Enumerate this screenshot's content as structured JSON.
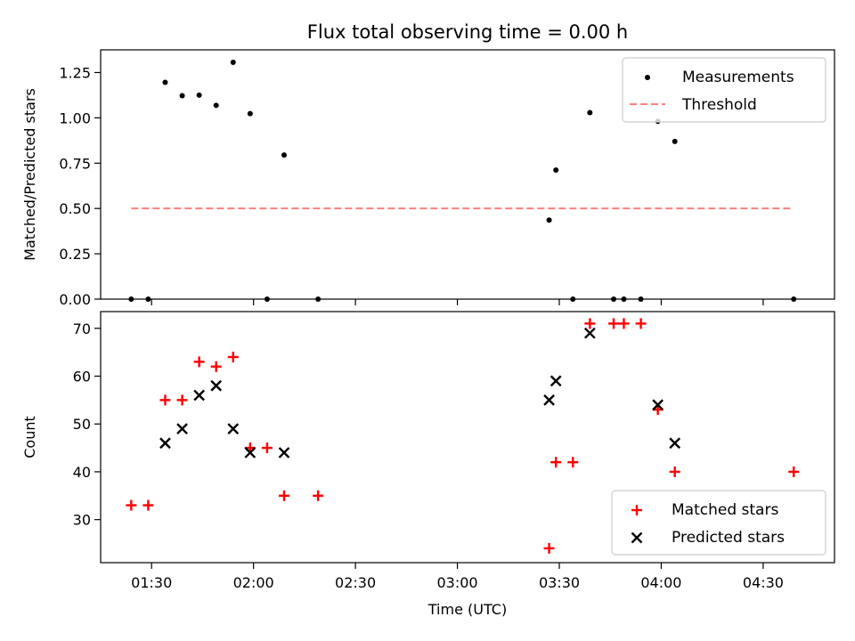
{
  "chart_data": [
    {
      "type": "scatter",
      "title": "Flux total observing time = 0.00 h",
      "xlabel": "",
      "ylabel": "Matched/Predicted stars",
      "xlim": [
        "01:15",
        "04:51"
      ],
      "ylim": [
        0,
        1.375
      ],
      "y_ticks": [
        "0.00",
        "0.25",
        "0.50",
        "0.75",
        "1.00",
        "1.25"
      ],
      "x_ticks": [
        "01:30",
        "02:00",
        "02:30",
        "03:00",
        "03:30",
        "04:00",
        "04:30"
      ],
      "x_ticklabels_visible": false,
      "grid": false,
      "legend": "top-right",
      "series": [
        {
          "name": "Measurements",
          "marker": "dot",
          "color": "#000000",
          "points": [
            {
              "x": "01:24",
              "y": 0.0
            },
            {
              "x": "01:29",
              "y": 0.0
            },
            {
              "x": "01:34",
              "y": 1.196
            },
            {
              "x": "01:39",
              "y": 1.122
            },
            {
              "x": "01:44",
              "y": 1.125
            },
            {
              "x": "01:49",
              "y": 1.069
            },
            {
              "x": "01:54",
              "y": 1.306
            },
            {
              "x": "01:59",
              "y": 1.023
            },
            {
              "x": "02:04",
              "y": 0.0
            },
            {
              "x": "02:09",
              "y": 0.795
            },
            {
              "x": "02:19",
              "y": 0.0
            },
            {
              "x": "03:27",
              "y": 0.436
            },
            {
              "x": "03:29",
              "y": 0.712
            },
            {
              "x": "03:34",
              "y": 0.0
            },
            {
              "x": "03:39",
              "y": 1.029
            },
            {
              "x": "03:46",
              "y": 0.0
            },
            {
              "x": "03:49",
              "y": 0.0
            },
            {
              "x": "03:54",
              "y": 0.0
            },
            {
              "x": "03:59",
              "y": 0.981
            },
            {
              "x": "04:04",
              "y": 0.87
            },
            {
              "x": "04:39",
              "y": 0.0
            }
          ]
        },
        {
          "name": "Threshold",
          "marker": "dashed-line",
          "color": "#ff7f7f",
          "points": [
            {
              "x": "01:24",
              "y": 0.5
            },
            {
              "x": "04:39",
              "y": 0.5
            }
          ]
        }
      ]
    },
    {
      "type": "scatter",
      "title": "",
      "xlabel": "Time (UTC)",
      "ylabel": "Count",
      "xlim": [
        "01:15",
        "04:51"
      ],
      "ylim": [
        21,
        73.5
      ],
      "y_ticks": [
        "30",
        "40",
        "50",
        "60",
        "70"
      ],
      "x_ticks": [
        "01:30",
        "02:00",
        "02:30",
        "03:00",
        "03:30",
        "04:00",
        "04:30"
      ],
      "grid": false,
      "legend": "bottom-right",
      "series": [
        {
          "name": "Matched stars",
          "marker": "plus",
          "color": "#ff0000",
          "points": [
            {
              "x": "01:24",
              "y": 33
            },
            {
              "x": "01:29",
              "y": 33
            },
            {
              "x": "01:34",
              "y": 55
            },
            {
              "x": "01:39",
              "y": 55
            },
            {
              "x": "01:44",
              "y": 63
            },
            {
              "x": "01:49",
              "y": 62
            },
            {
              "x": "01:54",
              "y": 64
            },
            {
              "x": "01:59",
              "y": 45
            },
            {
              "x": "02:04",
              "y": 45
            },
            {
              "x": "02:09",
              "y": 35
            },
            {
              "x": "02:19",
              "y": 35
            },
            {
              "x": "03:27",
              "y": 24
            },
            {
              "x": "03:29",
              "y": 42
            },
            {
              "x": "03:34",
              "y": 42
            },
            {
              "x": "03:39",
              "y": 71
            },
            {
              "x": "03:46",
              "y": 71
            },
            {
              "x": "03:49",
              "y": 71
            },
            {
              "x": "03:54",
              "y": 71
            },
            {
              "x": "03:59",
              "y": 53
            },
            {
              "x": "04:04",
              "y": 40
            },
            {
              "x": "04:39",
              "y": 40
            }
          ]
        },
        {
          "name": "Predicted stars",
          "marker": "x",
          "color": "#000000",
          "points": [
            {
              "x": "01:34",
              "y": 46
            },
            {
              "x": "01:39",
              "y": 49
            },
            {
              "x": "01:44",
              "y": 56
            },
            {
              "x": "01:49",
              "y": 58
            },
            {
              "x": "01:54",
              "y": 49
            },
            {
              "x": "01:59",
              "y": 44
            },
            {
              "x": "02:09",
              "y": 44
            },
            {
              "x": "03:27",
              "y": 55
            },
            {
              "x": "03:29",
              "y": 59
            },
            {
              "x": "03:39",
              "y": 69
            },
            {
              "x": "03:59",
              "y": 54
            },
            {
              "x": "04:04",
              "y": 46
            }
          ]
        }
      ]
    }
  ]
}
